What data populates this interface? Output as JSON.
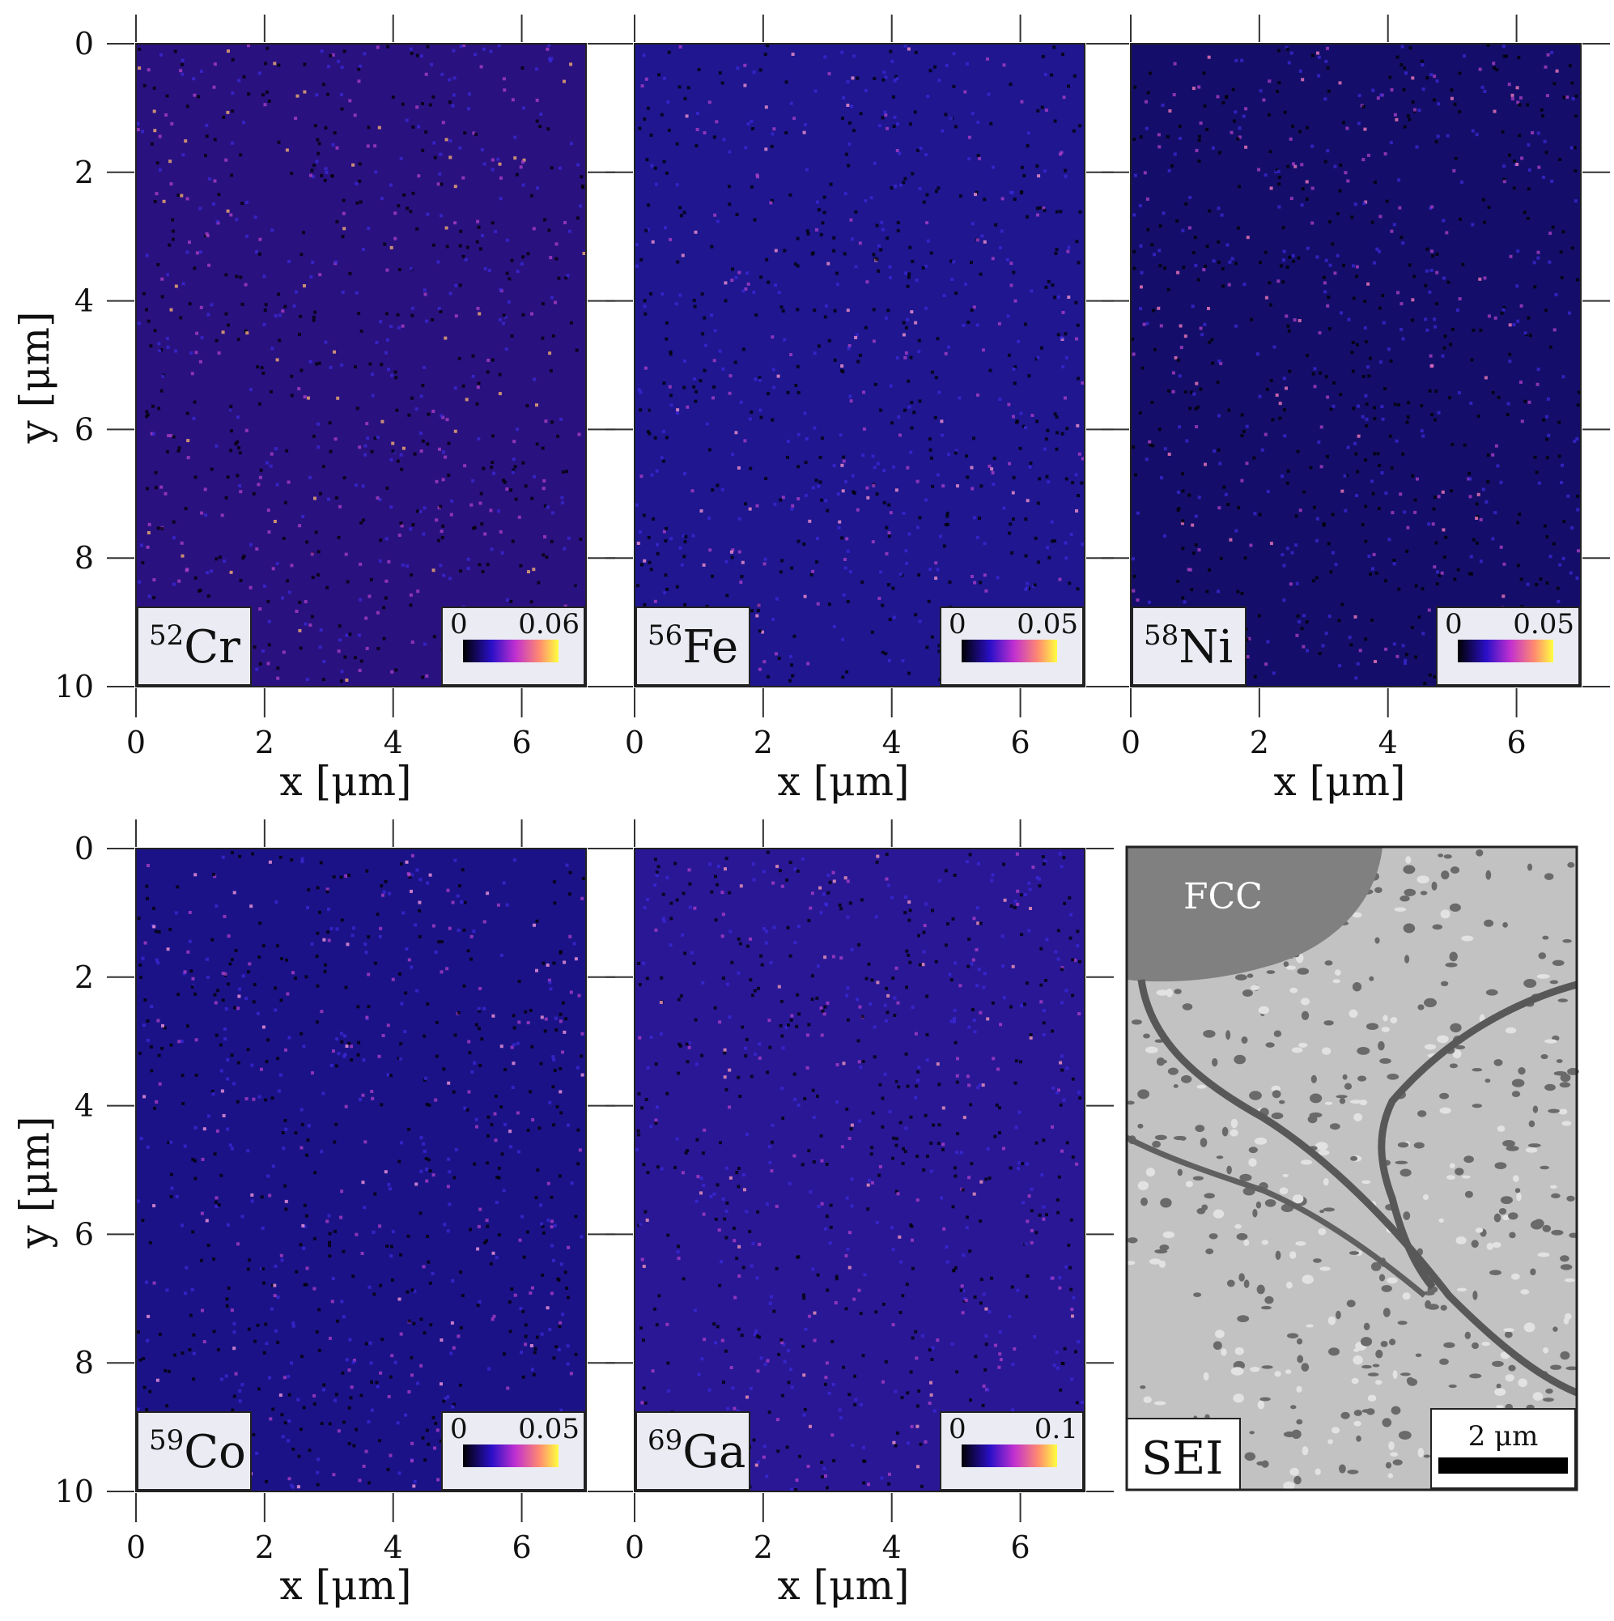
{
  "figure": {
    "axis_labels": {
      "x": "x [μm]",
      "y": "y [μm]"
    }
  },
  "chart_data": [
    {
      "type": "heatmap",
      "element": "Cr",
      "isotope": "52",
      "x_ticks": [
        0,
        2,
        4,
        6
      ],
      "y_ticks": [
        0,
        2,
        4,
        6,
        8,
        10
      ],
      "xlim": [
        0,
        7
      ],
      "ylim": [
        0,
        10
      ],
      "xlabel": "",
      "ylabel": "y [μm]",
      "colorbar": {
        "min": "0",
        "max": "0.06"
      },
      "base_color": "#2a1180",
      "bright_color": "#ffb870"
    },
    {
      "type": "heatmap",
      "element": "Fe",
      "isotope": "56",
      "x_ticks": [
        0,
        2,
        4,
        6
      ],
      "y_ticks": [
        0,
        2,
        4,
        6,
        8,
        10
      ],
      "xlim": [
        0,
        7
      ],
      "ylim": [
        0,
        10
      ],
      "xlabel": "",
      "ylabel": "",
      "colorbar": {
        "min": "0",
        "max": "0.05"
      },
      "base_color": "#1f1690",
      "bright_color": "#ff9ad0"
    },
    {
      "type": "heatmap",
      "element": "Ni",
      "isotope": "58",
      "x_ticks": [
        0,
        2,
        4,
        6
      ],
      "y_ticks": [
        0,
        2,
        4,
        6,
        8,
        10
      ],
      "xlim": [
        0,
        7
      ],
      "ylim": [
        0,
        10
      ],
      "xlabel": "",
      "ylabel": "",
      "colorbar": {
        "min": "0",
        "max": "0.05"
      },
      "base_color": "#140e6a",
      "bright_color": "#ff7fc0"
    },
    {
      "type": "heatmap",
      "element": "Co",
      "isotope": "59",
      "x_ticks": [
        0,
        2,
        4,
        6
      ],
      "y_ticks": [
        0,
        2,
        4,
        6,
        8,
        10
      ],
      "xlim": [
        0,
        7
      ],
      "ylim": [
        0,
        10
      ],
      "xlabel": "",
      "ylabel": "y [μm]",
      "colorbar": {
        "min": "0",
        "max": "0.05"
      },
      "base_color": "#1c1288",
      "bright_color": "#ff9fe0"
    },
    {
      "type": "heatmap",
      "element": "Ga",
      "isotope": "69",
      "x_ticks": [
        0,
        2,
        4,
        6
      ],
      "y_ticks": [
        0,
        2,
        4,
        6,
        8,
        10
      ],
      "xlim": [
        0,
        7
      ],
      "ylim": [
        0,
        10
      ],
      "xlabel": "",
      "ylabel": "",
      "colorbar": {
        "min": "0",
        "max": "0.1"
      },
      "base_color": "#2a1796",
      "bright_color": "#ffa0b8"
    }
  ],
  "sei": {
    "label": "SEI",
    "phase_label": "FCC",
    "scalebar_label": "2 μm"
  }
}
